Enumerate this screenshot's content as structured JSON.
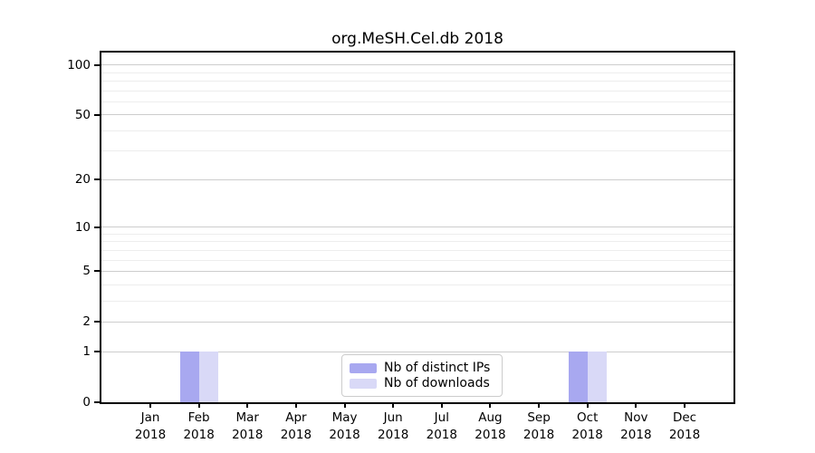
{
  "chart_data": {
    "type": "bar",
    "title": "org.MeSH.Cel.db 2018",
    "x_year": "2018",
    "categories": [
      "Jan",
      "Feb",
      "Mar",
      "Apr",
      "May",
      "Jun",
      "Jul",
      "Aug",
      "Sep",
      "Oct",
      "Nov",
      "Dec"
    ],
    "series": [
      {
        "name": "Nb of distinct IPs",
        "color": "#a8a8f0",
        "values": [
          0,
          1,
          0,
          0,
          0,
          0,
          0,
          0,
          0,
          1,
          0,
          0
        ]
      },
      {
        "name": "Nb of downloads",
        "color": "#d9d9f7",
        "values": [
          0,
          1,
          0,
          0,
          0,
          0,
          0,
          0,
          0,
          1,
          0,
          0
        ]
      }
    ],
    "yscale": "log1p",
    "ylim": [
      0,
      118.7
    ],
    "y_major_ticks": [
      0,
      1,
      2,
      5,
      10,
      20,
      50,
      100
    ],
    "y_minor_gridlines": [
      3,
      4,
      6,
      7,
      8,
      9,
      30,
      40,
      60,
      70,
      80,
      90
    ],
    "grid": true,
    "legend_position": "lower center",
    "xlabel": "",
    "ylabel": ""
  },
  "colors": {
    "background": "#ffffff",
    "axis": "#000000",
    "text": "#000000",
    "major_grid": "#cdcdcd",
    "minor_grid": "#ededed",
    "legend_border": "#cccccc"
  }
}
